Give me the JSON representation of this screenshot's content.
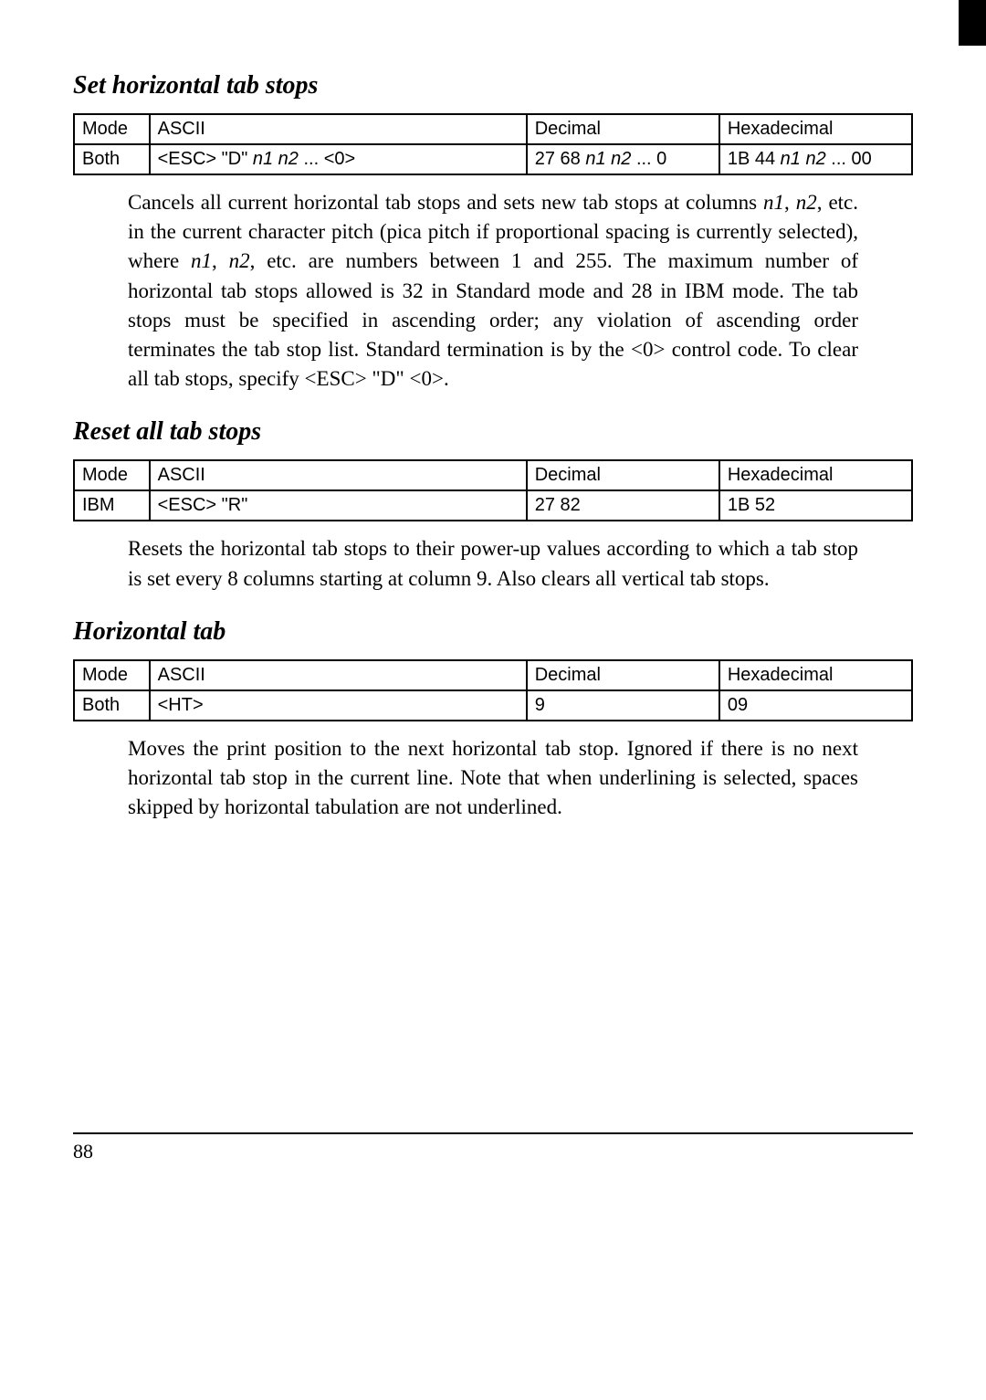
{
  "page": {
    "number": "88",
    "background_color": "#ffffff",
    "text_color": "#000000",
    "body_fontsize": 23,
    "title_fontsize": 28,
    "table_fontsize": 20
  },
  "sections": [
    {
      "title": "Set horizontal tab stops",
      "table": {
        "headers": [
          "Mode",
          "ASCII",
          "Decimal",
          "Hexadecimal"
        ],
        "row": {
          "mode": "Both",
          "ascii_pre": "<ESC>   \"D\"   ",
          "ascii_n1": "n1",
          "ascii_mid": "    ",
          "ascii_n2": "n2",
          "ascii_post": "    ...    <0>",
          "dec_pre": "27   68   ",
          "dec_n1": "n1",
          "dec_mid": "   ",
          "dec_n2": "n2",
          "dec_post": "  ...   0",
          "hex_pre": "1B   44  ",
          "hex_n1": "n1",
          "hex_mid": "  ",
          "hex_n2": "n2",
          "hex_post": "   ...   00"
        }
      },
      "body_pre": "Cancels all current horizontal tab stops and sets new tab stops at columns ",
      "body_n1": "n1",
      "body_mid1": ", ",
      "body_n2": "n2",
      "body_mid2": ", etc. in the current character pitch (pica pitch if proportional spacing is currently selected), where ",
      "body_n1b": "n1",
      "body_mid3": ", ",
      "body_n2b": "n2",
      "body_post": ", etc. are numbers between 1 and 255. The maximum number of horizontal tab stops allowed is 32 in Standard mode and 28 in IBM mode. The tab stops must be specified in ascending order; any violation of ascending order terminates the tab stop list. Standard termination is by the <0> control code. To clear all tab stops, specify <ESC> \"D\" <0>."
    },
    {
      "title": "Reset all tab stops",
      "table": {
        "headers": [
          "Mode",
          "ASCII",
          "Decimal",
          "Hexadecimal"
        ],
        "row": {
          "mode": "IBM",
          "ascii": "<ESC>    \"R\"",
          "decimal": "27    82",
          "hex": "1B    52"
        }
      },
      "body": "Resets the horizontal tab stops to their power-up values according to which a tab stop is set every 8 columns starting at column 9. Also clears all vertical tab stops."
    },
    {
      "title": "Horizontal tab",
      "table": {
        "headers": [
          "Mode",
          "ASCII",
          "Decimal",
          "Hexadecimal"
        ],
        "row": {
          "mode": "Both",
          "ascii": "<HT>",
          "decimal": "9",
          "hex": "09"
        }
      },
      "body": "Moves the print position to the next horizontal tab stop. Ignored if there is no next horizontal tab stop in the current line. Note that when underlining is selected, spaces skipped by horizontal tabulation are not underlined."
    }
  ]
}
